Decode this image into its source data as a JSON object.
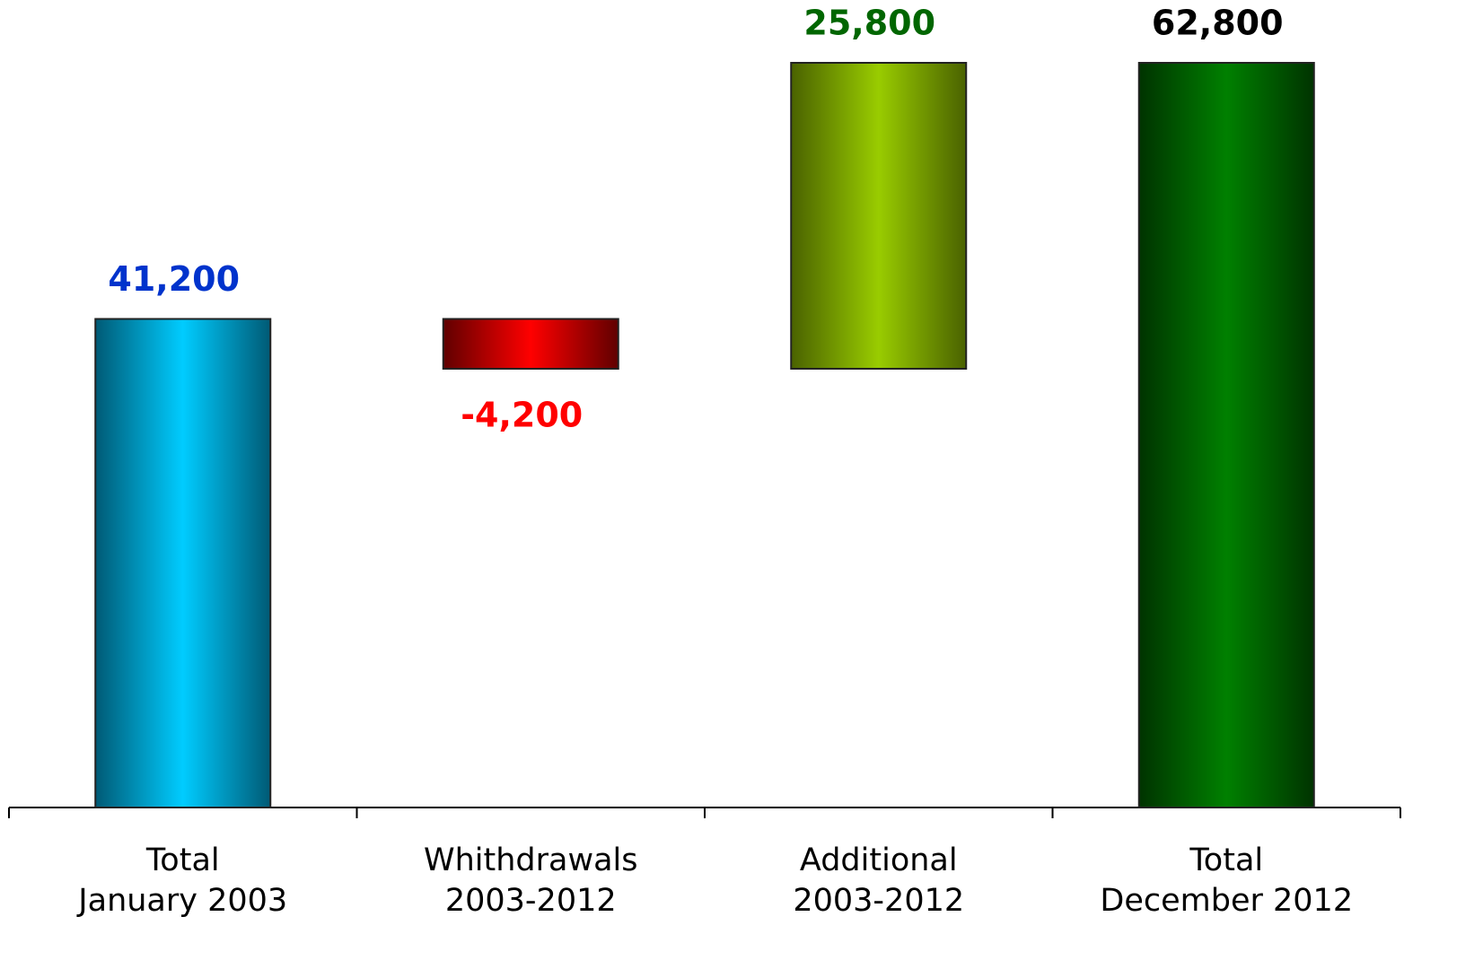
{
  "chart_data": {
    "type": "waterfall",
    "categories": [
      [
        "Total",
        "January 2003"
      ],
      [
        "Whithdrawals",
        "2003-2012"
      ],
      [
        "Additional",
        "2003-2012"
      ],
      [
        "Total",
        "December 2012"
      ]
    ],
    "values": [
      41200,
      -4200,
      25800,
      62800
    ],
    "value_labels": [
      "41,200",
      "-4,200",
      "25,800",
      "62,800"
    ],
    "measure": [
      "absolute",
      "relative",
      "relative",
      "total"
    ],
    "colors": [
      "#00ccff",
      "#ff0000",
      "#99cc00",
      "#008000"
    ],
    "edge_colors": [
      "#005a75",
      "#600000",
      "#4a6200",
      "#003300"
    ],
    "label_colors": [
      "#0033cc",
      "#ff0000",
      "#006600",
      "#000000"
    ]
  }
}
